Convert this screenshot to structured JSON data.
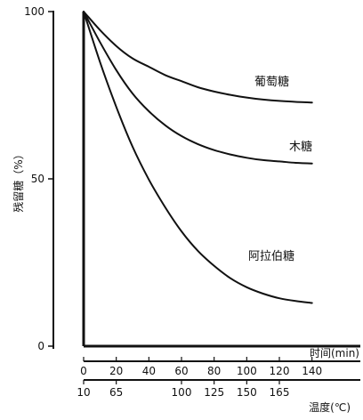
{
  "chart_data": {
    "type": "line",
    "ylabel": "残留糖（%）",
    "xlabel": "时间(min)",
    "x2label": "温度(℃)",
    "ylim": [
      0,
      100
    ],
    "xlim": [
      0,
      150
    ],
    "y_ticks": [
      {
        "value": 0,
        "label": "0"
      },
      {
        "value": 50,
        "label": "50"
      },
      {
        "value": 100,
        "label": "100"
      }
    ],
    "x_ticks": [
      {
        "value": 0,
        "label": "0"
      },
      {
        "value": 20,
        "label": "20"
      },
      {
        "value": 40,
        "label": "40"
      },
      {
        "value": 60,
        "label": "60"
      },
      {
        "value": 80,
        "label": "80"
      },
      {
        "value": 100,
        "label": "100"
      },
      {
        "value": 120,
        "label": "120"
      },
      {
        "value": 140,
        "label": "140"
      }
    ],
    "x2_ticks": [
      {
        "value": 0,
        "label": "10"
      },
      {
        "value": 20,
        "label": "65"
      },
      {
        "value": 60,
        "label": "100"
      },
      {
        "value": 80,
        "label": "125"
      },
      {
        "value": 100,
        "label": "150"
      },
      {
        "value": 120,
        "label": "165"
      }
    ],
    "series": [
      {
        "name": "葡萄糖",
        "color": "#111111",
        "x": [
          0,
          10,
          20,
          30,
          40,
          50,
          60,
          70,
          80,
          90,
          100,
          110,
          120,
          130,
          140
        ],
        "y": [
          100,
          94.5,
          89.7,
          86,
          83.5,
          81,
          79.2,
          77.4,
          76.1,
          75.1,
          74.3,
          73.7,
          73.3,
          73,
          72.8
        ]
      },
      {
        "name": "木糖",
        "color": "#111111",
        "x": [
          0,
          10,
          20,
          30,
          40,
          50,
          60,
          70,
          80,
          90,
          100,
          110,
          120,
          130,
          140
        ],
        "y": [
          100,
          90.9,
          82.5,
          75.5,
          70.2,
          66,
          62.8,
          60.4,
          58.6,
          57.3,
          56.3,
          55.6,
          55.2,
          54.8,
          54.6
        ]
      },
      {
        "name": "阿拉伯糖",
        "color": "#111111",
        "x": [
          0,
          10,
          20,
          30,
          40,
          50,
          60,
          70,
          80,
          90,
          100,
          110,
          120,
          130,
          140
        ],
        "y": [
          100,
          85,
          71.5,
          59.6,
          49.8,
          41.5,
          34.3,
          28.5,
          24,
          20.3,
          17.6,
          15.7,
          14.3,
          13.5,
          12.9
        ]
      }
    ]
  }
}
